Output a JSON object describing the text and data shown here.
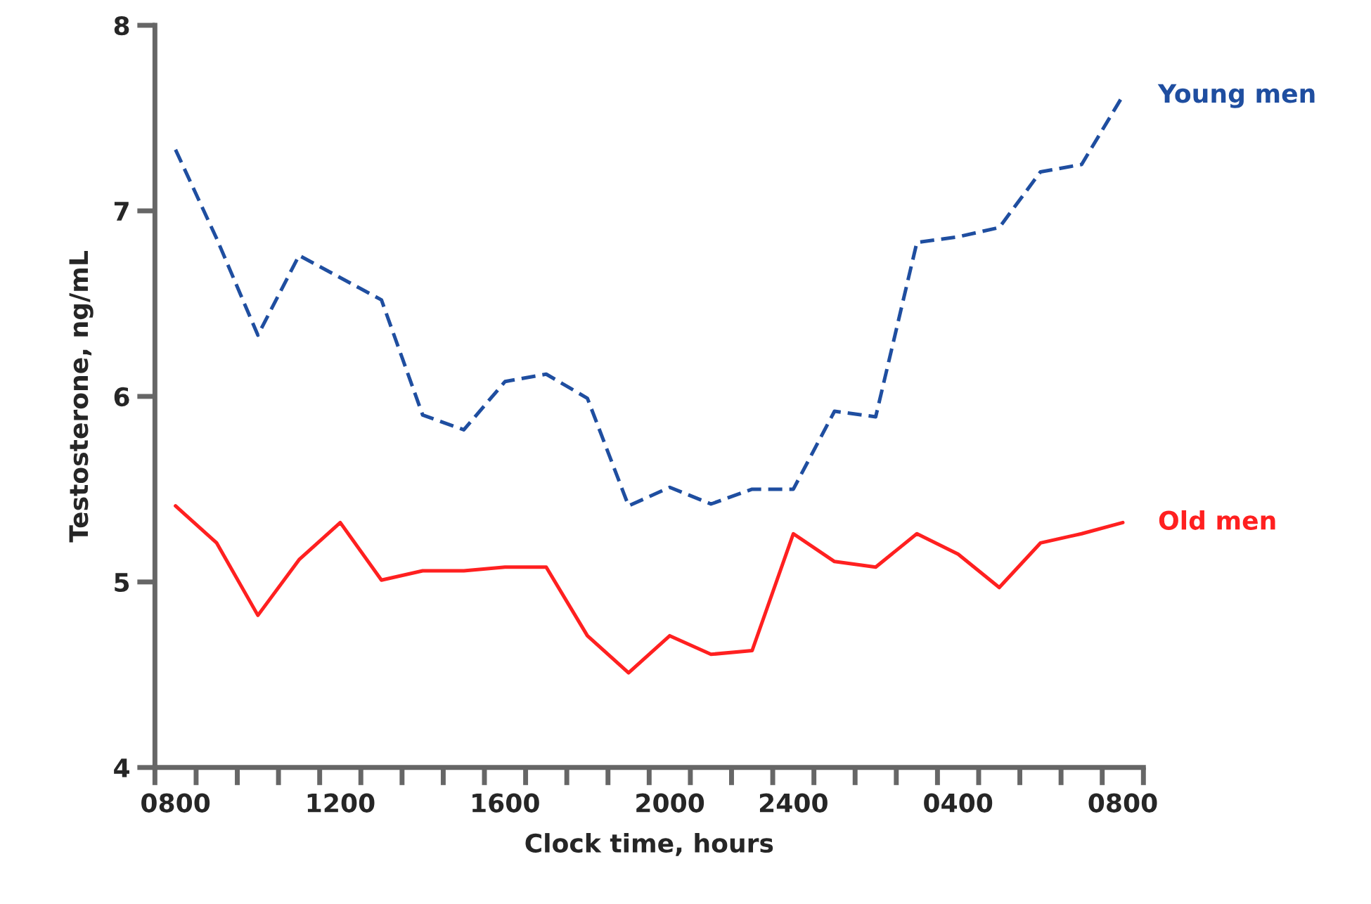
{
  "chart_data": {
    "type": "line",
    "xlabel": "Clock time, hours",
    "ylabel": "Testosterone, ng/mL",
    "categories": [
      "0800",
      null,
      null,
      null,
      "1200",
      null,
      null,
      null,
      "1600",
      null,
      null,
      null,
      "2000",
      null,
      null,
      "2400",
      null,
      null,
      null,
      "0400",
      null,
      null,
      null,
      "0800"
    ],
    "series": [
      {
        "name": "Young men",
        "color": "#1f4ea0",
        "line_style": "dashed",
        "values": [
          7.33,
          6.85,
          6.33,
          6.76,
          6.64,
          6.52,
          5.9,
          5.82,
          6.08,
          6.12,
          5.99,
          5.41,
          5.51,
          5.42,
          5.5,
          5.5,
          5.92,
          5.89,
          6.83,
          6.86,
          6.91,
          7.21,
          7.25,
          7.62
        ]
      },
      {
        "name": "Old men",
        "color": "#ff2020",
        "line_style": "solid",
        "values": [
          5.41,
          5.21,
          4.82,
          5.12,
          5.32,
          5.01,
          5.06,
          5.06,
          5.08,
          5.08,
          4.71,
          4.51,
          4.71,
          4.61,
          4.63,
          5.26,
          5.11,
          5.08,
          5.26,
          5.15,
          4.97,
          5.21,
          5.26,
          5.32
        ]
      }
    ],
    "ylim": [
      4,
      8
    ],
    "yticks": [
      4,
      5,
      6,
      7,
      8
    ],
    "grid": false,
    "legend": false
  }
}
